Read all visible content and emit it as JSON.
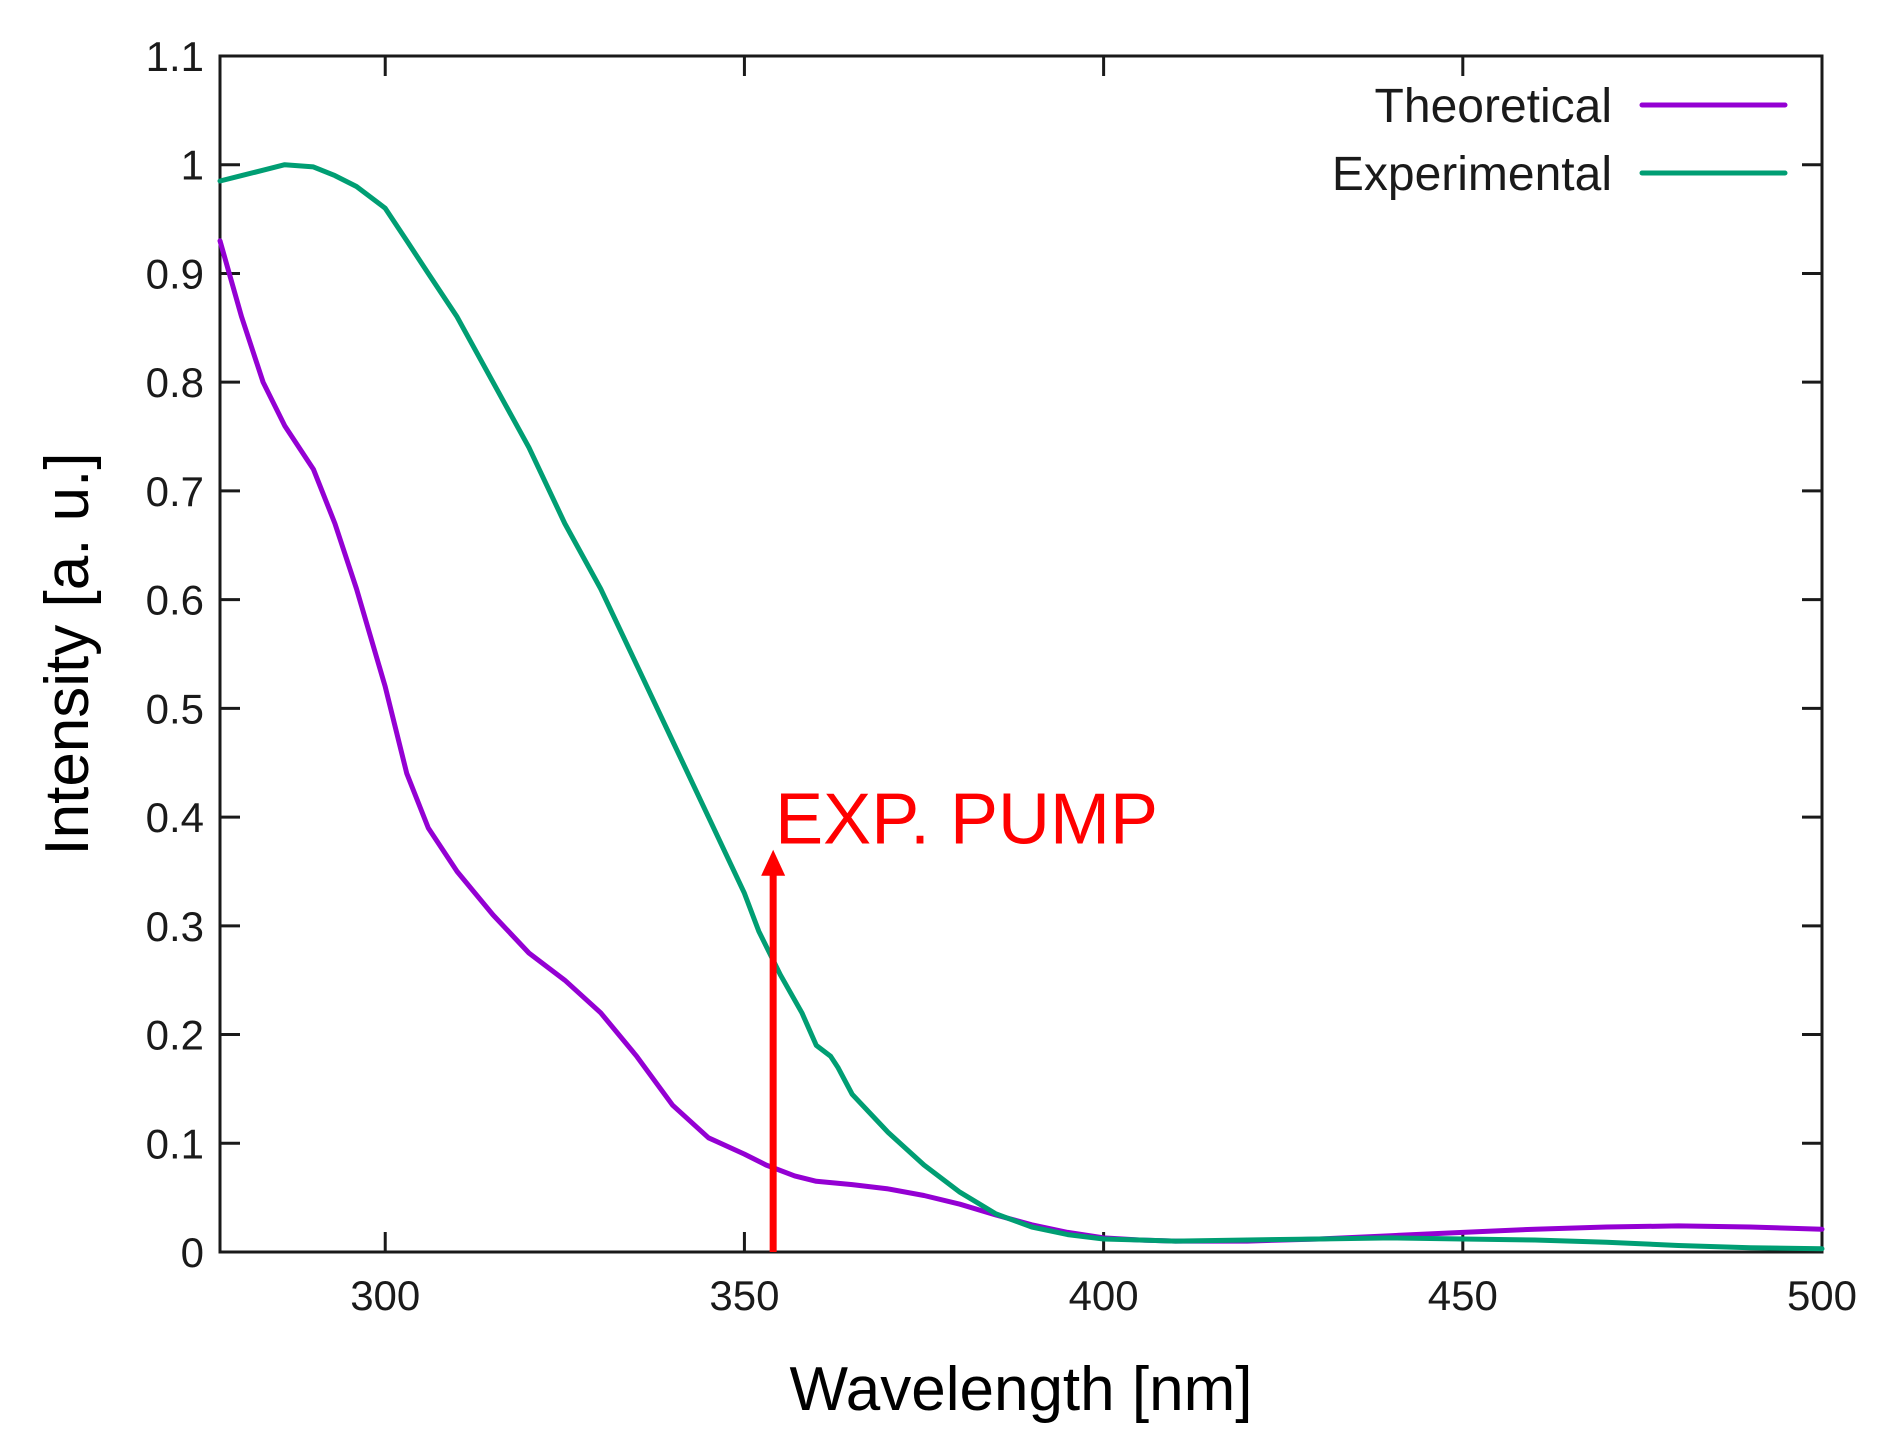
{
  "chart_data": {
    "type": "line",
    "title": "",
    "xlabel": "Wavelength [nm]",
    "ylabel": "Intensity [a. u.]",
    "xlim": [
      277,
      500
    ],
    "ylim": [
      0,
      1.1
    ],
    "xticks": [
      300,
      350,
      400,
      450,
      500
    ],
    "yticks": [
      0,
      0.1,
      0.2,
      0.3,
      0.4,
      0.5,
      0.6,
      0.7,
      0.8,
      0.9,
      1,
      1.1
    ],
    "xtick_labels": [
      "300",
      "350",
      "400",
      "450",
      "500"
    ],
    "ytick_labels": [
      "0",
      "0.1",
      "0.2",
      "0.3",
      "0.4",
      "0.5",
      "0.6",
      "0.7",
      "0.8",
      "0.9",
      "1",
      "1.1"
    ],
    "grid": false,
    "legend_position": "top-right",
    "series": [
      {
        "name": "Theoretical",
        "color": "#9400d3",
        "x": [
          277,
          280,
          283,
          286,
          290,
          293,
          296,
          300,
          303,
          306,
          310,
          315,
          320,
          325,
          330,
          335,
          340,
          345,
          350,
          353,
          357,
          360,
          365,
          370,
          375,
          380,
          385,
          390,
          395,
          400,
          405,
          410,
          420,
          430,
          440,
          450,
          460,
          470,
          480,
          490,
          500
        ],
        "y": [
          0.93,
          0.86,
          0.8,
          0.76,
          0.72,
          0.67,
          0.61,
          0.52,
          0.44,
          0.39,
          0.35,
          0.31,
          0.275,
          0.25,
          0.22,
          0.18,
          0.135,
          0.105,
          0.09,
          0.08,
          0.07,
          0.065,
          0.062,
          0.058,
          0.052,
          0.044,
          0.034,
          0.025,
          0.018,
          0.013,
          0.011,
          0.01,
          0.01,
          0.012,
          0.015,
          0.018,
          0.021,
          0.023,
          0.024,
          0.023,
          0.021
        ]
      },
      {
        "name": "Experimental",
        "color": "#009e73",
        "x": [
          277,
          280,
          283,
          286,
          290,
          293,
          296,
          300,
          303,
          306,
          310,
          315,
          320,
          325,
          330,
          335,
          340,
          345,
          350,
          352,
          355,
          358,
          360,
          362,
          363,
          365,
          370,
          375,
          380,
          385,
          390,
          395,
          400,
          405,
          410,
          420,
          430,
          440,
          450,
          460,
          470,
          480,
          490,
          500
        ],
        "y": [
          0.985,
          0.99,
          0.995,
          1.0,
          0.998,
          0.99,
          0.98,
          0.96,
          0.93,
          0.9,
          0.86,
          0.8,
          0.74,
          0.67,
          0.61,
          0.54,
          0.47,
          0.4,
          0.33,
          0.295,
          0.255,
          0.22,
          0.19,
          0.18,
          0.17,
          0.145,
          0.11,
          0.08,
          0.055,
          0.035,
          0.023,
          0.016,
          0.012,
          0.011,
          0.01,
          0.011,
          0.012,
          0.013,
          0.012,
          0.011,
          0.009,
          0.006,
          0.004,
          0.003
        ]
      }
    ],
    "annotations": [
      {
        "text": "EXP. PUMP",
        "x": 354,
        "y_from": 0,
        "y_to": 0.37,
        "color": "#ff0000"
      }
    ]
  }
}
